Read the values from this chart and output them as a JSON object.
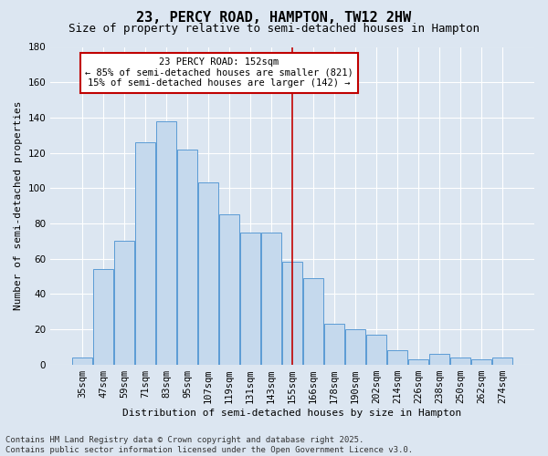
{
  "title": "23, PERCY ROAD, HAMPTON, TW12 2HW",
  "subtitle": "Size of property relative to semi-detached houses in Hampton",
  "xlabel": "Distribution of semi-detached houses by size in Hampton",
  "ylabel": "Number of semi-detached properties",
  "categories": [
    "35sqm",
    "47sqm",
    "59sqm",
    "71sqm",
    "83sqm",
    "95sqm",
    "107sqm",
    "119sqm",
    "131sqm",
    "143sqm",
    "155sqm",
    "166sqm",
    "178sqm",
    "190sqm",
    "202sqm",
    "214sqm",
    "226sqm",
    "238sqm",
    "250sqm",
    "262sqm",
    "274sqm"
  ],
  "values": [
    4,
    54,
    70,
    126,
    138,
    122,
    103,
    85,
    75,
    75,
    58,
    49,
    23,
    20,
    17,
    8,
    3,
    6,
    4,
    3,
    4
  ],
  "bar_color": "#c5d9ed",
  "bar_edge_color": "#5b9bd5",
  "vline_x_index": 10,
  "vline_color": "#c00000",
  "annotation_text": "23 PERCY ROAD: 152sqm\n← 85% of semi-detached houses are smaller (821)\n15% of semi-detached houses are larger (142) →",
  "annotation_box_facecolor": "#ffffff",
  "annotation_box_edgecolor": "#c00000",
  "ylim": [
    0,
    180
  ],
  "yticks": [
    0,
    20,
    40,
    60,
    80,
    100,
    120,
    140,
    160,
    180
  ],
  "footer": "Contains HM Land Registry data © Crown copyright and database right 2025.\nContains public sector information licensed under the Open Government Licence v3.0.",
  "bg_color": "#dce6f1",
  "title_fontsize": 11,
  "subtitle_fontsize": 9,
  "axis_label_fontsize": 8,
  "tick_fontsize": 7.5,
  "annotation_fontsize": 7.5,
  "footer_fontsize": 6.5
}
